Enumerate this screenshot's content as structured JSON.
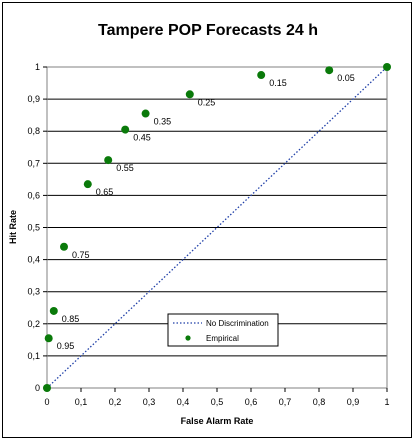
{
  "chart_data": {
    "type": "scatter",
    "title": "Tampere POP Forecasts 24 h",
    "xlabel": "False Alarm Rate",
    "ylabel": "Hit Rate",
    "xlim": [
      0,
      1
    ],
    "ylim": [
      0,
      1
    ],
    "x_ticks": [
      "0",
      "0,1",
      "0,2",
      "0,3",
      "0,4",
      "0,5",
      "0,6",
      "0,7",
      "0,8",
      "0,9",
      "1"
    ],
    "y_ticks": [
      "0",
      "0,1",
      "0,2",
      "0,3",
      "0,4",
      "0,5",
      "0,6",
      "0,7",
      "0,8",
      "0,9",
      "1"
    ],
    "grid": "horizontal",
    "series": [
      {
        "name": "Empirical",
        "color": "#0a7a0a",
        "points": [
          {
            "x": 0,
            "y": 0,
            "label": ""
          },
          {
            "x": 0.005,
            "y": 0.155,
            "label": "0.95"
          },
          {
            "x": 0.02,
            "y": 0.24,
            "label": "0.85"
          },
          {
            "x": 0.05,
            "y": 0.44,
            "label": "0.75"
          },
          {
            "x": 0.12,
            "y": 0.635,
            "label": "0.65"
          },
          {
            "x": 0.18,
            "y": 0.71,
            "label": "0.55"
          },
          {
            "x": 0.23,
            "y": 0.805,
            "label": "0.45"
          },
          {
            "x": 0.29,
            "y": 0.855,
            "label": "0.35"
          },
          {
            "x": 0.42,
            "y": 0.915,
            "label": "0.25"
          },
          {
            "x": 0.63,
            "y": 0.975,
            "label": "0.15"
          },
          {
            "x": 0.83,
            "y": 0.99,
            "label": "0.05"
          },
          {
            "x": 1.0,
            "y": 1.0,
            "label": ""
          }
        ]
      },
      {
        "name": "No Discrimination",
        "color": "#1f3fa8",
        "line": [
          [
            0,
            0
          ],
          [
            1,
            1
          ]
        ]
      }
    ],
    "legend": {
      "position": "bottom-center",
      "items": [
        "No Discrimination",
        "Empirical"
      ]
    }
  }
}
